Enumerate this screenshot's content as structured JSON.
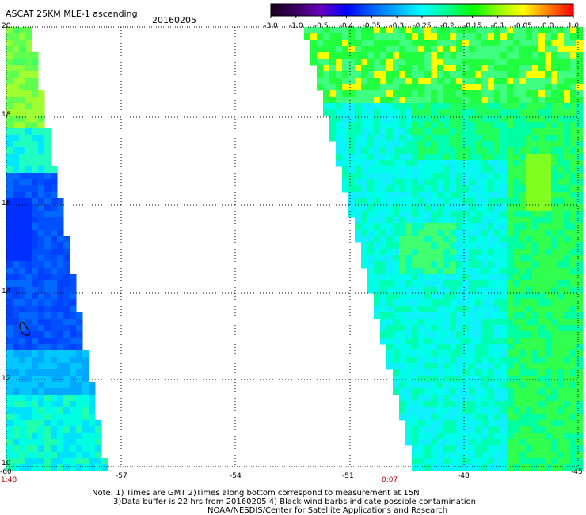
{
  "header": {
    "title": "ASCAT 25KM MLE-1 ascending",
    "date": "20160205"
  },
  "colorbar": {
    "tick_labels": [
      "-3.0",
      "-1.0",
      "-0.5",
      "-0.4",
      "-0.35",
      "-0.3",
      "-0.25",
      "-0.2",
      "-0.15",
      "-0.1",
      "-0.05",
      "0.0",
      "1.0"
    ],
    "colors": [
      "#1a001a",
      "#3a0060",
      "#6a00c0",
      "#0000ff",
      "#0060ff",
      "#00b0ff",
      "#00ffff",
      "#00ff90",
      "#00ff00",
      "#90ff00",
      "#ffff00",
      "#ff8000",
      "#ff0000"
    ]
  },
  "axes": {
    "lat_labels": [
      "20",
      "18",
      "16",
      "14",
      "12",
      "10"
    ],
    "lon_labels": [
      "-60",
      "-57",
      "-54",
      "-51",
      "-48",
      "-45"
    ],
    "time_labels": [
      "1:48",
      "0:07"
    ],
    "grid": true
  },
  "notes": {
    "line1": "Note: 1) Times are GMT 2)Times along bottom correspond to measurement at 15N",
    "line2": "3)Data buffer is 22 hrs from 20160205 4) Black wind barbs indicate possible contamination",
    "line3": "NOAA/NESDIS/Center for Satellite Applications and Research"
  }
}
